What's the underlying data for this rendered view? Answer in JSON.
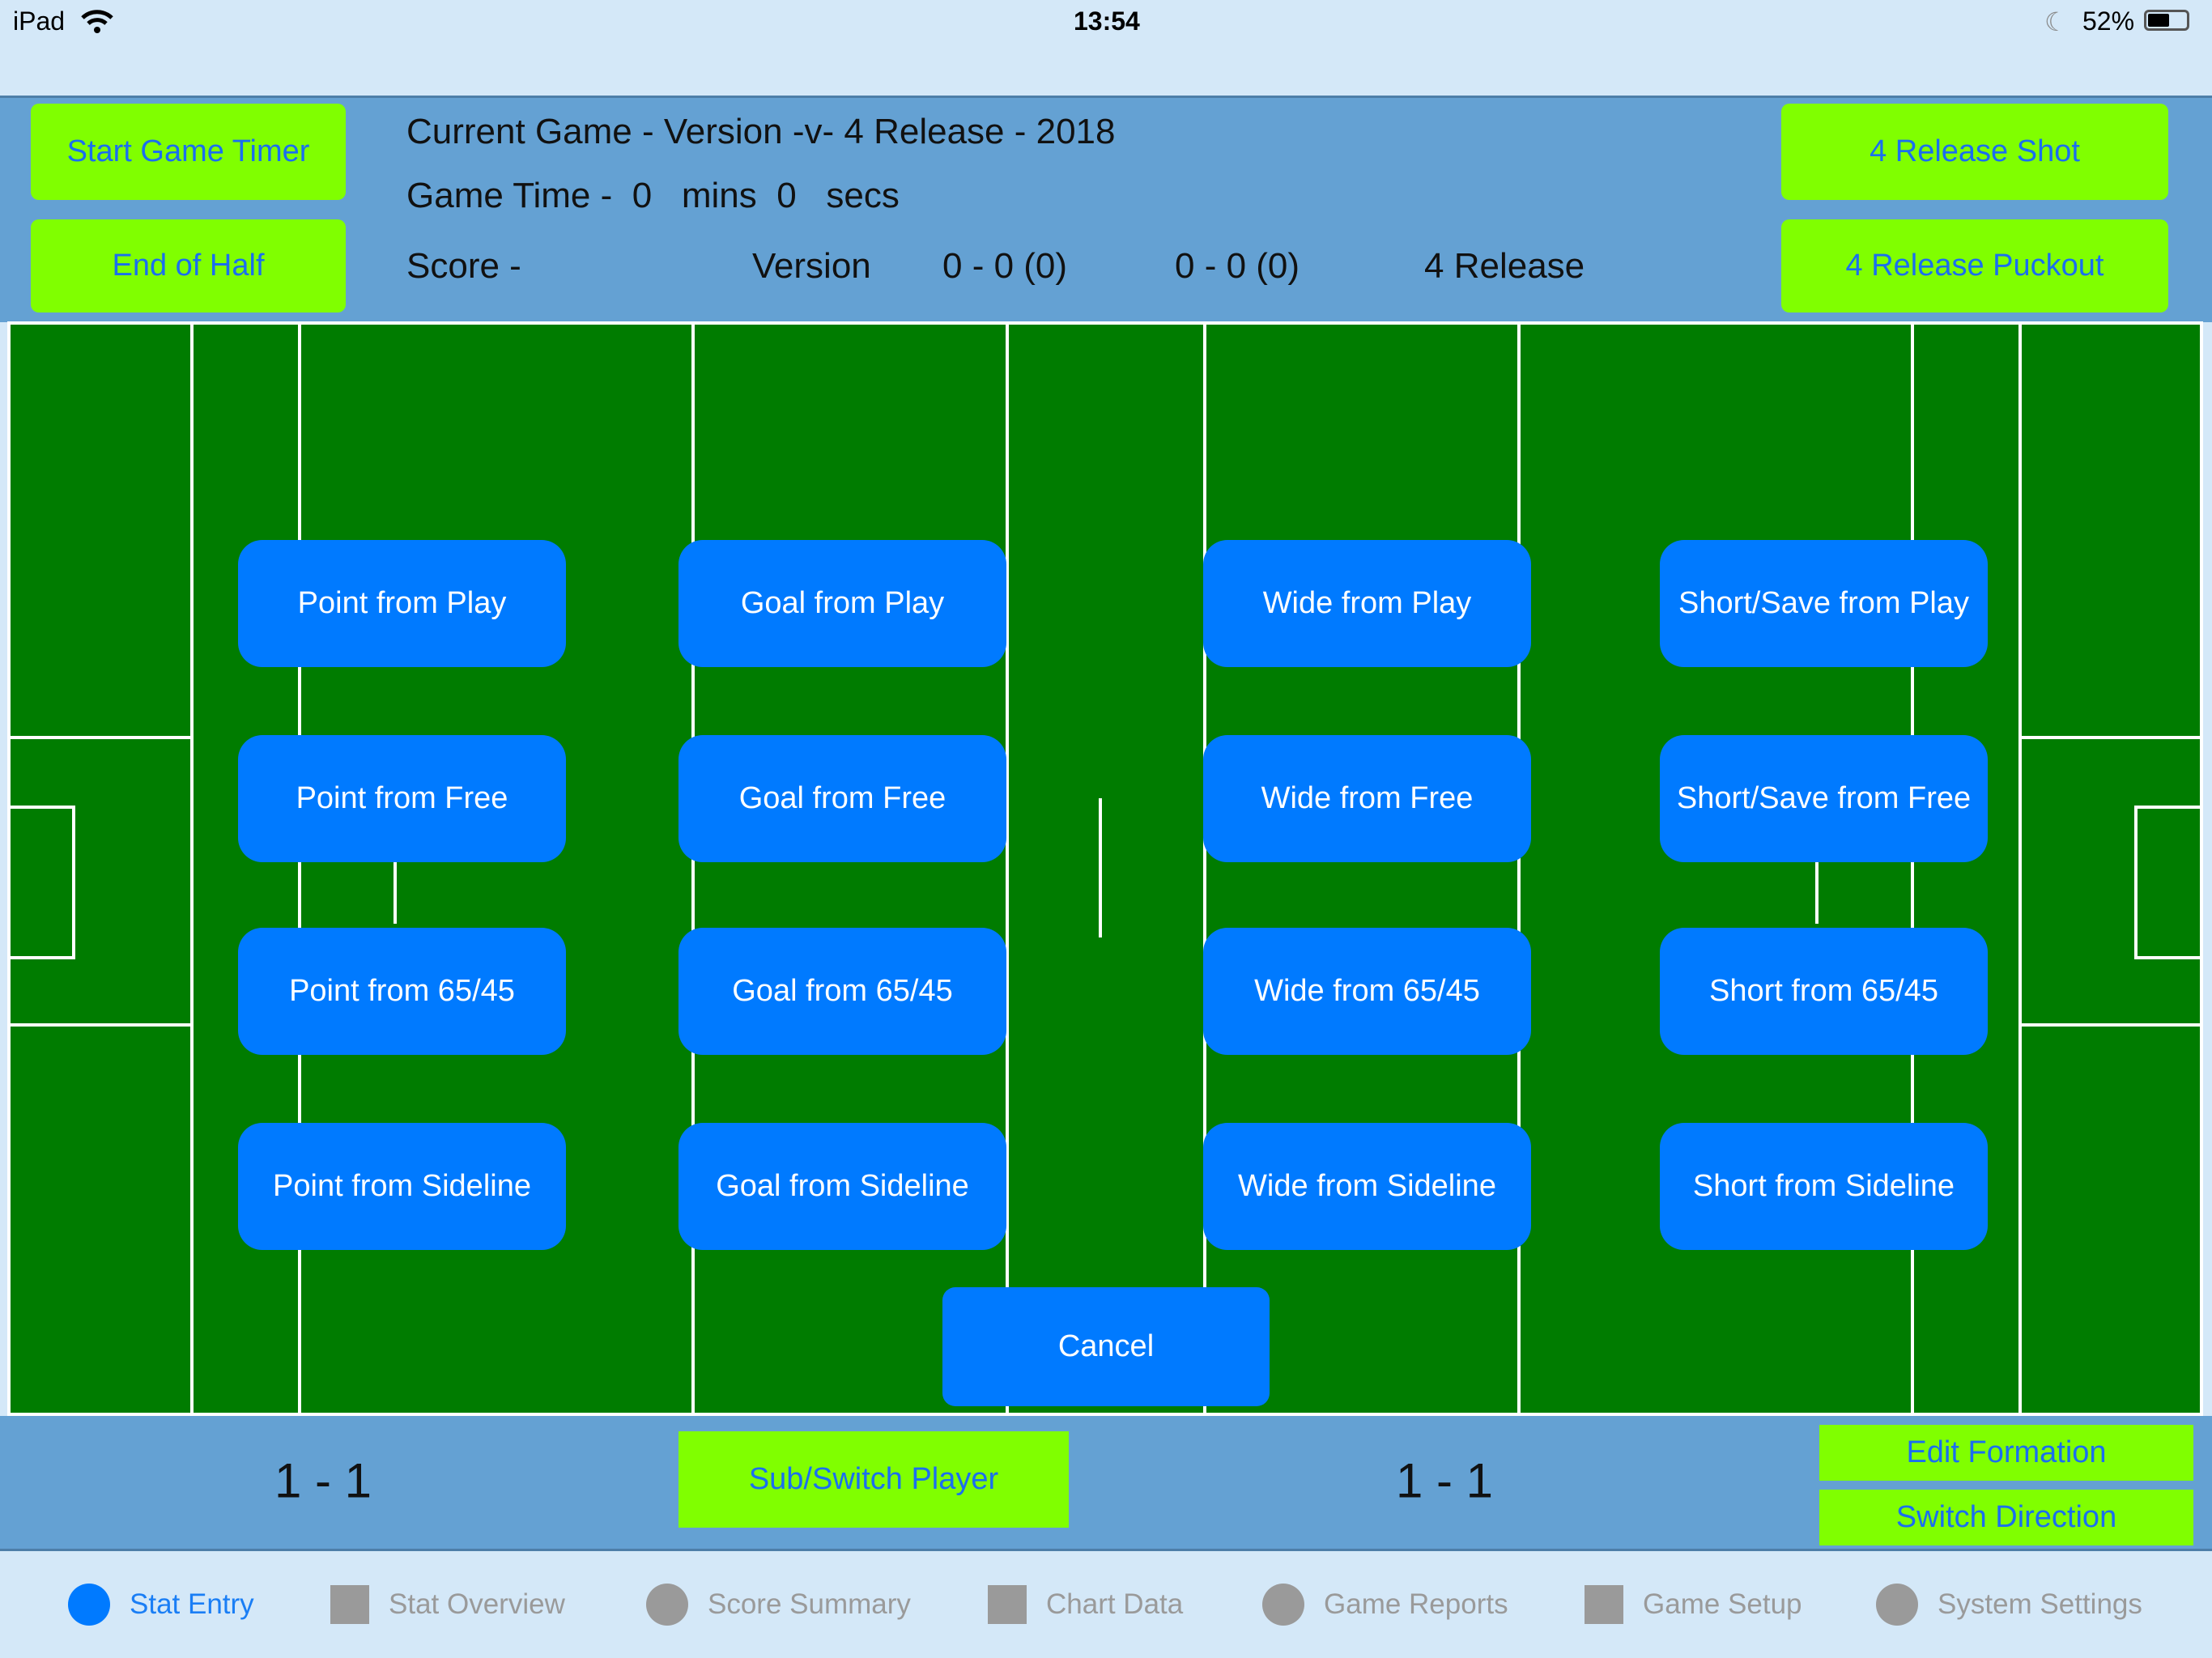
{
  "status_bar": {
    "device": "iPad",
    "time": "13:54",
    "battery": "52%",
    "battery_level_percent": 52
  },
  "header": {
    "start_timer": "Start Game Timer",
    "end_half": "End of Half",
    "title": "Current Game - Version -v- 4 Release - 2018",
    "game_time": "Game Time -  0   mins  0   secs",
    "score_label": "Score -",
    "team_a": "Version",
    "score_a": "0 - 0 (0)",
    "score_b": "0 - 0 (0)",
    "team_b": "4 Release",
    "shot_button": "4 Release Shot",
    "puckout_button": "4 Release Puckout"
  },
  "shot_options": [
    [
      "Point from Play",
      "Goal from Play",
      "Wide from Play",
      "Short/Save from Play"
    ],
    [
      "Point from Free",
      "Goal from Free",
      "Wide from Free",
      "Short/Save from Free"
    ],
    [
      "Point from 65/45",
      "Goal from 65/45",
      "Wide from 65/45",
      "Short from 65/45"
    ],
    [
      "Point from Sideline",
      "Goal from Sideline",
      "Wide from Sideline",
      "Short from Sideline"
    ]
  ],
  "cancel": "Cancel",
  "bottom": {
    "left_count": "1 - 1",
    "sub_switch": "Sub/Switch Player",
    "right_count": "1 - 1",
    "edit_formation": "Edit Formation",
    "switch_direction": "Switch Direction"
  },
  "tabs": [
    {
      "label": "Stat Entry",
      "icon": "circle",
      "active": true
    },
    {
      "label": "Stat Overview",
      "icon": "square",
      "active": false
    },
    {
      "label": "Score Summary",
      "icon": "circle",
      "active": false
    },
    {
      "label": "Chart Data",
      "icon": "square",
      "active": false
    },
    {
      "label": "Game Reports",
      "icon": "circle",
      "active": false
    },
    {
      "label": "Game Setup",
      "icon": "square",
      "active": false
    },
    {
      "label": "System Settings",
      "icon": "circle",
      "active": false
    }
  ],
  "colors": {
    "field": "#007c00",
    "action_button": "#007aff",
    "green_button": "#80ff00",
    "header": "#64a1d3",
    "bar": "#d4e8f8"
  }
}
